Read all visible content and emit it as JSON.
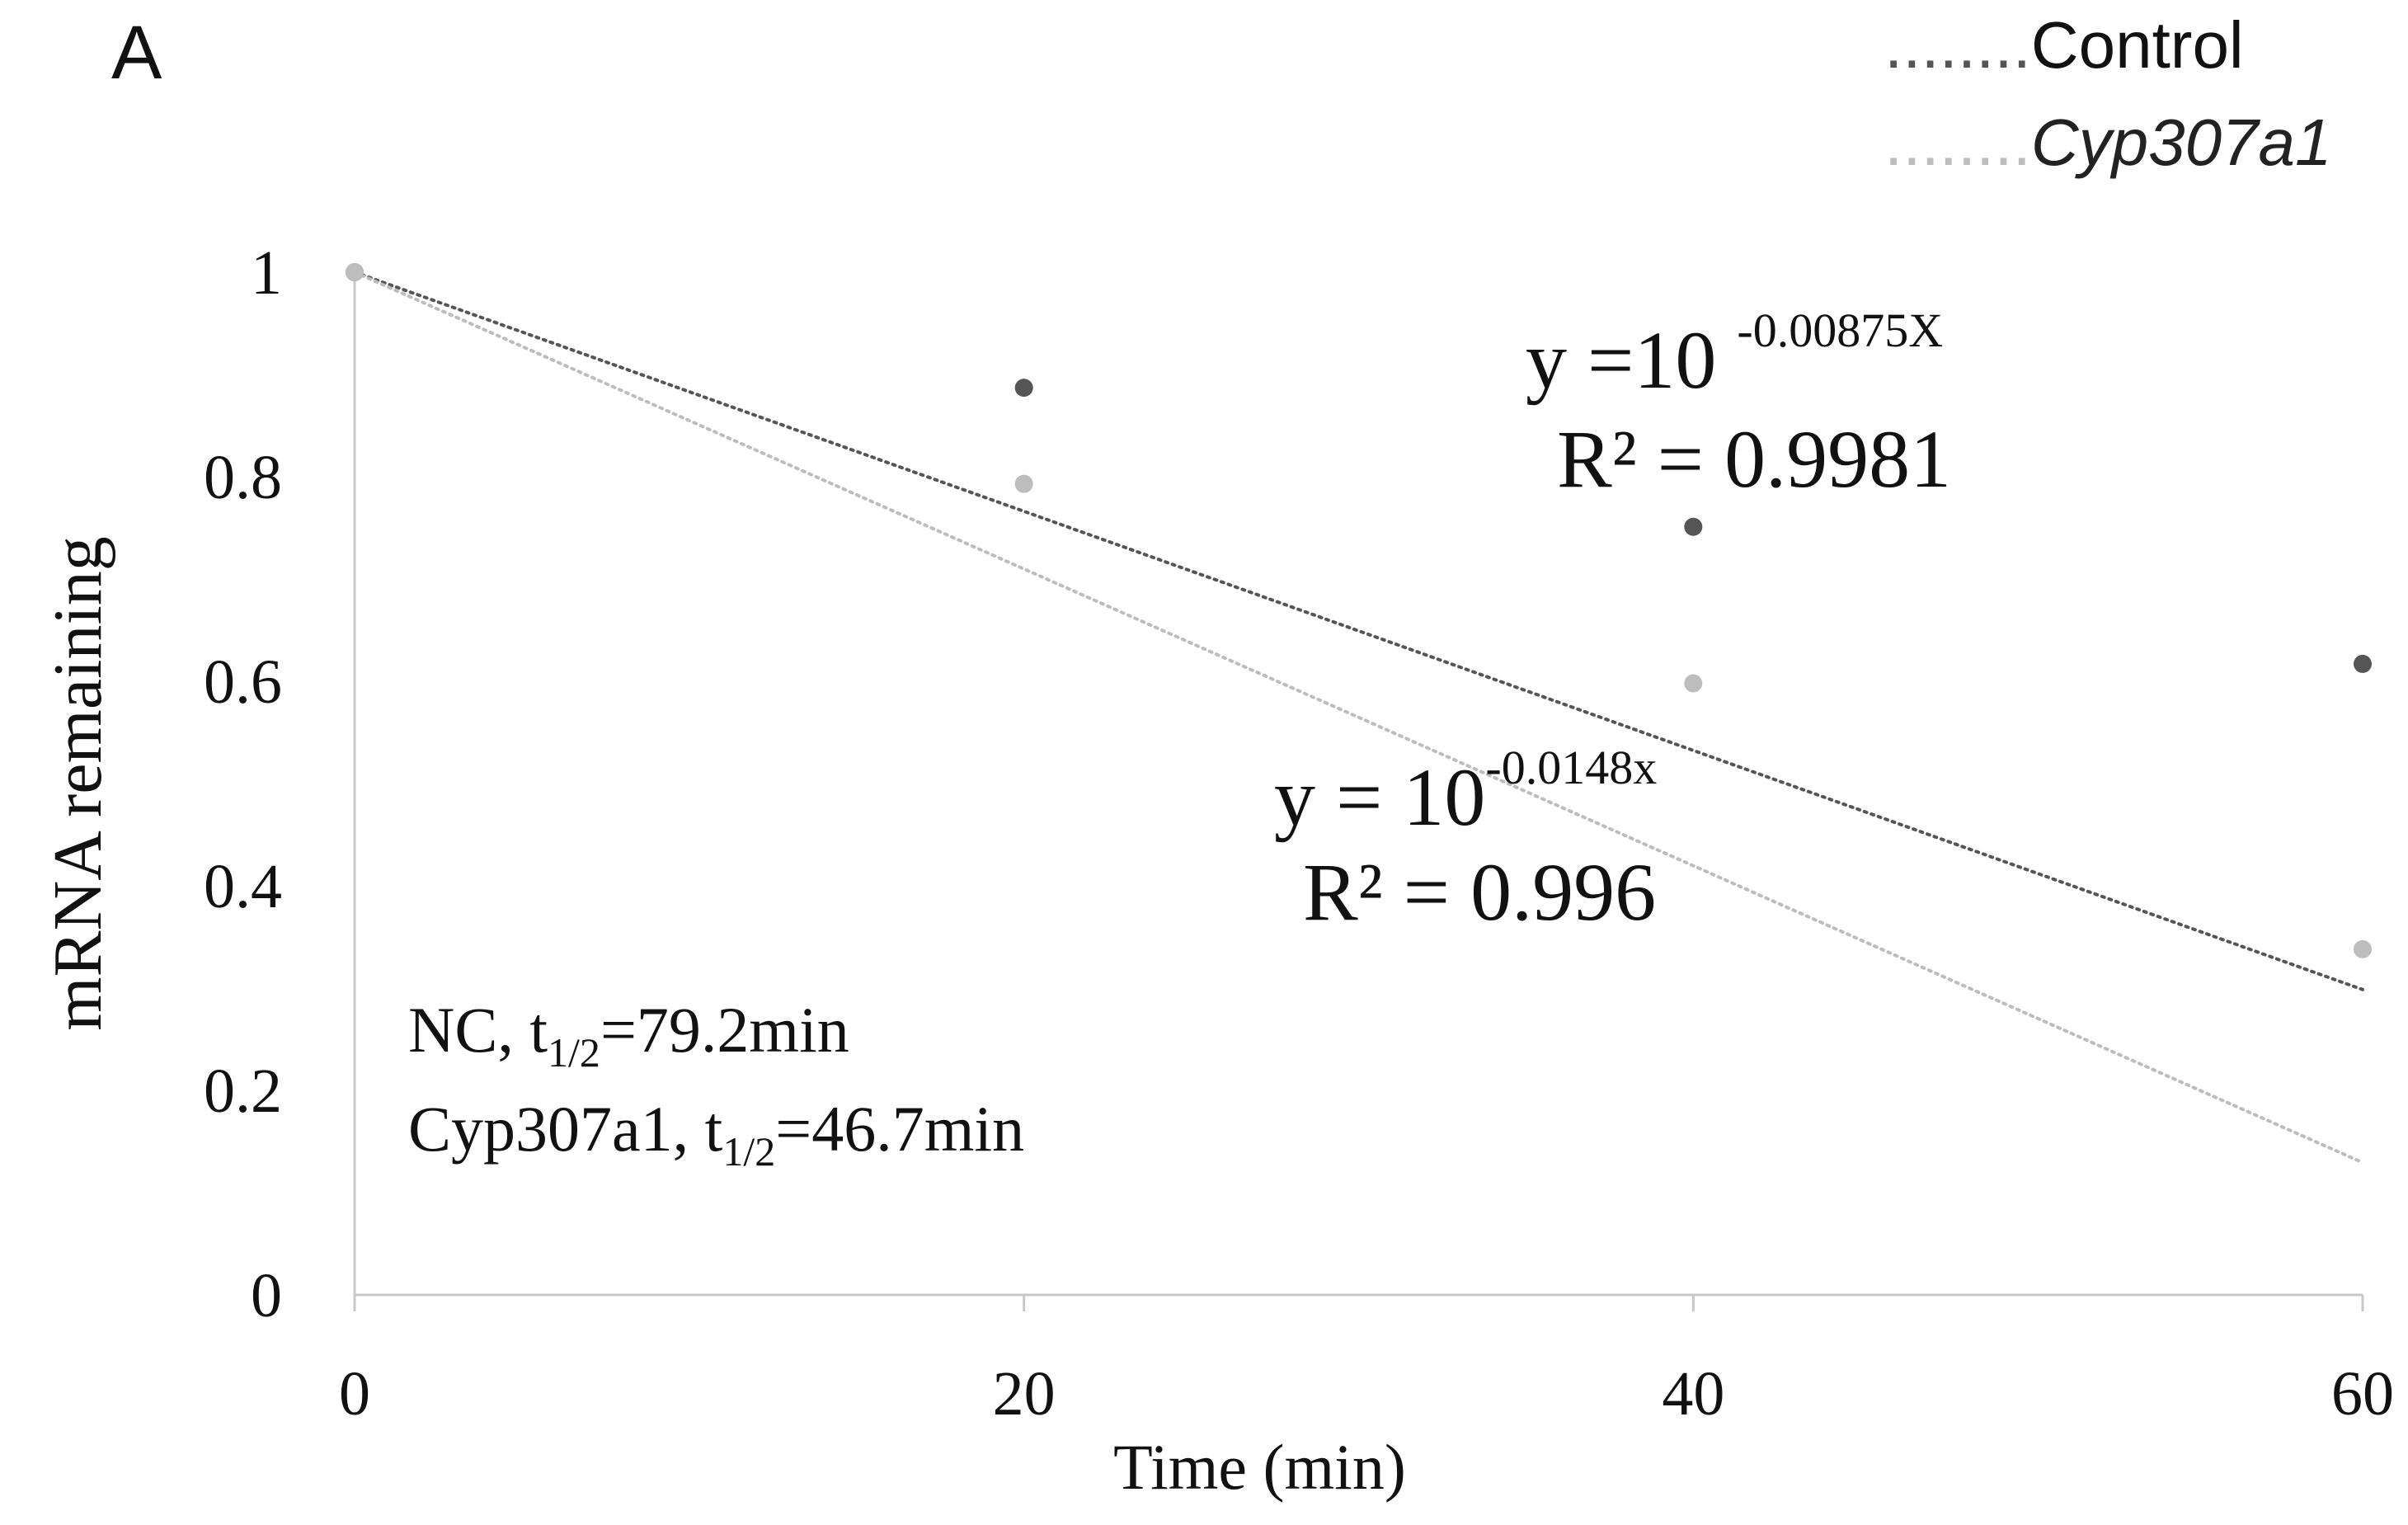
{
  "chart_data": {
    "type": "scatter",
    "panel_label": "A",
    "xlabel": "Time (min)",
    "ylabel": "mRNA remaining",
    "xlim": [
      0,
      60
    ],
    "ylim": [
      0,
      1
    ],
    "x_ticks": [
      0,
      20,
      40,
      60
    ],
    "y_ticks": [
      0,
      0.2,
      0.4,
      0.6,
      0.8,
      1
    ],
    "x_tick_labels": [
      "0",
      "20",
      "40",
      "60"
    ],
    "y_tick_labels": [
      "0",
      "0.2",
      "0.4",
      "0.6",
      "0.8",
      "1"
    ],
    "grid": false,
    "legend_position": "top-right",
    "legend_line_text": "........",
    "series": [
      {
        "name": "Control",
        "italic": false,
        "color": "#555555",
        "x": [
          0,
          20,
          40,
          60
        ],
        "y": [
          1.0,
          0.887,
          0.751,
          0.617
        ],
        "trendline": {
          "type": "exponential",
          "base": 10,
          "k": 0.00875,
          "x_range": [
            0,
            60
          ]
        },
        "equation": {
          "lead": "y =10 ",
          "exponent": "-0.00875X",
          "r2": "R² = 0.9981"
        }
      },
      {
        "name": "Cyp307a1",
        "italic": true,
        "color": "#bdbdbd",
        "x": [
          0,
          20,
          40,
          60
        ],
        "y": [
          1.0,
          0.793,
          0.598,
          0.338
        ],
        "trendline": {
          "type": "exponential",
          "base": 10,
          "k": 0.0148,
          "x_range": [
            0,
            60
          ]
        },
        "equation": {
          "lead": "y = 10",
          "exponent": "-0.0148x",
          "r2": "R² = 0.996"
        }
      }
    ],
    "annotations": {
      "nc": {
        "prefix": "NC,  t",
        "subscript": "1/2",
        "suffix": "=79.2min"
      },
      "cyp": {
        "prefix": "Cyp307a1,    t",
        "subscript": "1/2",
        "suffix": "=46.7min"
      }
    }
  }
}
